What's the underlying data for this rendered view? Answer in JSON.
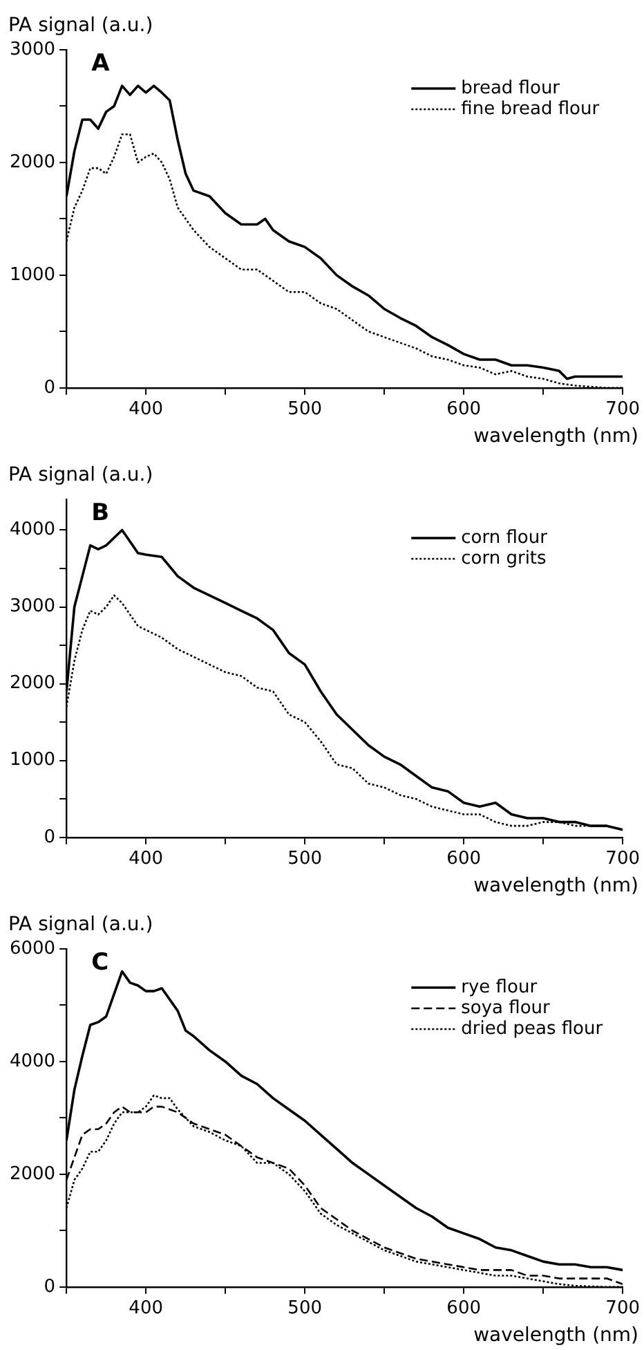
{
  "chart_data": [
    {
      "type": "line",
      "title": "A",
      "xlabel": "wavelength (nm)",
      "ylabel": "PA signal (a.u.)",
      "xlim": [
        350,
        700
      ],
      "ylim": [
        0,
        3000
      ],
      "xticks": [
        {
          "value": 350,
          "label": null
        },
        400,
        {
          "value": 450,
          "label": null
        },
        500,
        {
          "value": 550,
          "label": null
        },
        600,
        {
          "value": 650,
          "label": null
        },
        700
      ],
      "yticks": [
        0,
        {
          "value": 500,
          "label": null
        },
        1000,
        {
          "value": 1500,
          "label": null
        },
        2000,
        {
          "value": 2500,
          "label": null
        },
        3000
      ],
      "grid": false,
      "legend": "top right",
      "marker": "none",
      "x": [
        350,
        355,
        360,
        365,
        370,
        375,
        380,
        385,
        390,
        395,
        400,
        405,
        410,
        415,
        420,
        425,
        430,
        440,
        450,
        460,
        470,
        475,
        480,
        490,
        500,
        510,
        520,
        530,
        540,
        550,
        560,
        570,
        580,
        590,
        600,
        610,
        620,
        630,
        640,
        650,
        660,
        665,
        670,
        680,
        690,
        700
      ],
      "series": [
        {
          "name": "bread flour",
          "color": "#000000",
          "line_style": "solid",
          "values": [
            1700,
            2100,
            2380,
            2380,
            2300,
            2450,
            2500,
            2680,
            2600,
            2680,
            2620,
            2680,
            2620,
            2550,
            2200,
            1900,
            1750,
            1700,
            1550,
            1450,
            1450,
            1500,
            1400,
            1300,
            1250,
            1150,
            1000,
            900,
            820,
            700,
            620,
            550,
            450,
            380,
            300,
            250,
            250,
            200,
            200,
            180,
            150,
            80,
            100,
            100,
            100,
            100
          ]
        },
        {
          "name": "fine bread flour",
          "color": "#000000",
          "line_style": "dotted",
          "values": [
            1300,
            1600,
            1750,
            1950,
            1950,
            1900,
            2050,
            2250,
            2250,
            2000,
            2050,
            2080,
            2000,
            1850,
            1600,
            1500,
            1400,
            1250,
            1150,
            1050,
            1050,
            1000,
            950,
            850,
            850,
            750,
            700,
            600,
            500,
            450,
            400,
            350,
            280,
            250,
            200,
            180,
            120,
            150,
            100,
            80,
            40,
            30,
            20,
            10,
            0,
            0
          ]
        }
      ]
    },
    {
      "type": "line",
      "title": "B",
      "xlabel": "wavelength (nm)",
      "ylabel": "PA signal (a.u.)",
      "xlim": [
        350,
        700
      ],
      "ylim": [
        0,
        4400
      ],
      "xticks": [
        {
          "value": 350,
          "label": null
        },
        400,
        {
          "value": 450,
          "label": null
        },
        500,
        {
          "value": 550,
          "label": null
        },
        600,
        {
          "value": 650,
          "label": null
        },
        700
      ],
      "yticks": [
        0,
        {
          "value": 500,
          "label": null
        },
        1000,
        {
          "value": 1500,
          "label": null
        },
        2000,
        {
          "value": 2500,
          "label": null
        },
        3000,
        {
          "value": 3500,
          "label": null
        },
        4000
      ],
      "grid": false,
      "legend": "top right",
      "marker": "none",
      "x": [
        350,
        355,
        360,
        365,
        370,
        375,
        380,
        385,
        390,
        395,
        400,
        410,
        420,
        430,
        440,
        450,
        460,
        470,
        480,
        490,
        500,
        510,
        520,
        530,
        540,
        550,
        560,
        570,
        580,
        590,
        600,
        610,
        620,
        630,
        640,
        650,
        660,
        670,
        680,
        690,
        700
      ],
      "series": [
        {
          "name": "corn flour",
          "color": "#000000",
          "line_style": "solid",
          "values": [
            1900,
            3000,
            3400,
            3800,
            3750,
            3800,
            3900,
            4000,
            3850,
            3700,
            3680,
            3650,
            3400,
            3250,
            3150,
            3050,
            2950,
            2850,
            2700,
            2400,
            2250,
            1900,
            1600,
            1400,
            1200,
            1050,
            950,
            800,
            650,
            600,
            450,
            400,
            450,
            300,
            250,
            250,
            200,
            200,
            150,
            150,
            100
          ]
        },
        {
          "name": "corn grits",
          "color": "#000000",
          "line_style": "dotted",
          "values": [
            1700,
            2300,
            2700,
            2950,
            2900,
            3000,
            3150,
            3050,
            2900,
            2750,
            2700,
            2600,
            2450,
            2350,
            2250,
            2150,
            2100,
            1950,
            1900,
            1600,
            1500,
            1250,
            950,
            900,
            700,
            650,
            550,
            500,
            400,
            350,
            300,
            300,
            200,
            150,
            150,
            200,
            200,
            150,
            150,
            150,
            100
          ]
        }
      ]
    },
    {
      "type": "line",
      "title": "C",
      "xlabel": "wavelength (nm)",
      "ylabel": "PA signal (a.u.)",
      "xlim": [
        350,
        700
      ],
      "ylim": [
        0,
        6000
      ],
      "xticks": [
        {
          "value": 350,
          "label": null
        },
        400,
        {
          "value": 450,
          "label": null
        },
        500,
        {
          "value": 550,
          "label": null
        },
        600,
        {
          "value": 650,
          "label": null
        },
        700
      ],
      "yticks": [
        0,
        {
          "value": 1000,
          "label": null
        },
        2000,
        {
          "value": 3000,
          "label": null
        },
        4000,
        {
          "value": 5000,
          "label": null
        },
        6000
      ],
      "grid": false,
      "legend": "top right",
      "marker": "none",
      "x": [
        350,
        355,
        360,
        365,
        370,
        375,
        380,
        385,
        390,
        395,
        400,
        405,
        410,
        415,
        420,
        425,
        430,
        440,
        450,
        460,
        470,
        480,
        490,
        500,
        510,
        520,
        530,
        540,
        550,
        560,
        570,
        580,
        590,
        600,
        610,
        620,
        630,
        640,
        650,
        660,
        670,
        680,
        690,
        700
      ],
      "series": [
        {
          "name": "rye flour",
          "color": "#000000",
          "line_style": "solid",
          "values": [
            2600,
            3500,
            4100,
            4650,
            4700,
            4800,
            5200,
            5600,
            5400,
            5350,
            5250,
            5250,
            5300,
            5100,
            4900,
            4550,
            4450,
            4200,
            4000,
            3750,
            3600,
            3350,
            3150,
            2950,
            2700,
            2450,
            2200,
            2000,
            1800,
            1600,
            1400,
            1250,
            1050,
            950,
            850,
            700,
            650,
            550,
            450,
            400,
            400,
            350,
            350,
            300
          ]
        },
        {
          "name": "soya flour",
          "color": "#000000",
          "line_style": "dashed",
          "values": [
            1900,
            2300,
            2700,
            2800,
            2800,
            2900,
            3100,
            3200,
            3100,
            3100,
            3100,
            3200,
            3200,
            3150,
            3100,
            3000,
            2900,
            2800,
            2700,
            2500,
            2300,
            2200,
            2100,
            1800,
            1400,
            1200,
            1000,
            850,
            700,
            600,
            500,
            450,
            400,
            350,
            300,
            300,
            300,
            200,
            200,
            150,
            150,
            150,
            150,
            50
          ]
        },
        {
          "name": "dried peas flour",
          "color": "#000000",
          "line_style": "dotted",
          "values": [
            1400,
            1900,
            2100,
            2400,
            2400,
            2600,
            2900,
            3100,
            3100,
            3100,
            3200,
            3400,
            3350,
            3350,
            3150,
            3000,
            2850,
            2750,
            2600,
            2500,
            2200,
            2200,
            2000,
            1700,
            1300,
            1100,
            950,
            800,
            650,
            550,
            450,
            400,
            350,
            300,
            250,
            200,
            200,
            150,
            100,
            50,
            20,
            10,
            0,
            0
          ]
        }
      ]
    }
  ]
}
